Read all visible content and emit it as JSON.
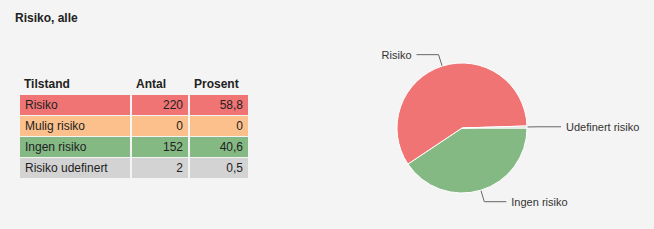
{
  "title": "Risiko, alle",
  "table": {
    "header": [
      "Tilstand",
      "Antal",
      "Prosent"
    ],
    "rows": [
      [
        "Risiko",
        220,
        "58,8"
      ],
      [
        "Mulig risiko",
        0,
        "0"
      ],
      [
        "Ingen risiko",
        152,
        "40,6"
      ],
      [
        "Risiko udefinert",
        2,
        "0,5"
      ]
    ],
    "colors": [
      "#f07474",
      "#fcc08c",
      "#84b984",
      "#d3d3d3"
    ]
  },
  "chart_data": {
    "type": "pie",
    "categories": [
      "Ingen risiko",
      "Risiko",
      "Udefinert risiko"
    ],
    "values": [
      40.6,
      58.8,
      0.5
    ],
    "colors": [
      "#84b984",
      "#f07474",
      "#d3d3d3"
    ]
  }
}
